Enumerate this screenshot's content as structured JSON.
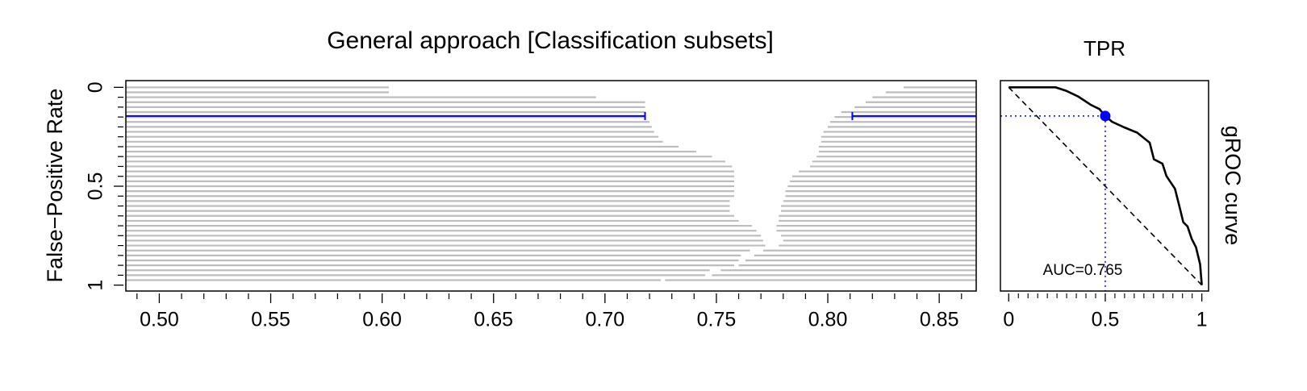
{
  "chart_data": [
    {
      "type": "interval-rows",
      "title": "General approach  [Classification subsets]",
      "y_label": "False−Positive Rate",
      "xlim": [
        0.485,
        0.8666
      ],
      "xticks": [
        {
          "value": 0.5,
          "label": "0.50"
        },
        {
          "value": 0.55,
          "label": "0.55"
        },
        {
          "value": 0.6,
          "label": "0.60"
        },
        {
          "value": 0.65,
          "label": "0.65"
        },
        {
          "value": 0.7,
          "label": "0.70"
        },
        {
          "value": 0.75,
          "label": "0.75"
        },
        {
          "value": 0.8,
          "label": "0.80"
        },
        {
          "value": 0.85,
          "label": "0.85"
        }
      ],
      "xminorticks": [
        0.49,
        0.51,
        0.52,
        0.53,
        0.54,
        0.56,
        0.57,
        0.58,
        0.59,
        0.61,
        0.62,
        0.63,
        0.64,
        0.66,
        0.67,
        0.68,
        0.69,
        0.71,
        0.72,
        0.73,
        0.74,
        0.76,
        0.77,
        0.78,
        0.79,
        0.81,
        0.82,
        0.83,
        0.84,
        0.86
      ],
      "ylim": [
        -0.034,
        1.03
      ],
      "yticks": [
        0,
        0.5,
        1
      ],
      "yminorticks": [
        0.05,
        0.1,
        0.15,
        0.2,
        0.25,
        0.3,
        0.35,
        0.4,
        0.45,
        0.55,
        0.6,
        0.65,
        0.7,
        0.75,
        0.8,
        0.85,
        0.9,
        0.95
      ],
      "color": "#bdbdbd",
      "rows": {
        "fpr": [
          0,
          0.025,
          0.05,
          0.075,
          0.1,
          0.125,
          0.15,
          0.175,
          0.2,
          0.225,
          0.25,
          0.275,
          0.3,
          0.325,
          0.35,
          0.375,
          0.4,
          0.425,
          0.45,
          0.475,
          0.5,
          0.525,
          0.55,
          0.575,
          0.6,
          0.625,
          0.65,
          0.675,
          0.7,
          0.725,
          0.75,
          0.775,
          0.8,
          0.825,
          0.85,
          0.875,
          0.9,
          0.925,
          0.95,
          0.975
        ],
        "gap_start": [
          0.603,
          0.603,
          0.696,
          0.718,
          0.718,
          0.718,
          0.718,
          0.72,
          0.721,
          0.722,
          0.724,
          0.726,
          0.733,
          0.741,
          0.748,
          0.754,
          0.757,
          0.758,
          0.758,
          0.758,
          0.758,
          0.758,
          0.758,
          0.756,
          0.756,
          0.756,
          0.758,
          0.76,
          0.766,
          0.768,
          0.77,
          0.771,
          0.772,
          0.765,
          0.761,
          0.76,
          0.758,
          0.747,
          0.745,
          0.725
        ],
        "gap_end": [
          0.834,
          0.826,
          0.82,
          0.817,
          0.812,
          0.806,
          0.803,
          0.801,
          0.8,
          0.798,
          0.797,
          0.797,
          0.796,
          0.796,
          0.795,
          0.793,
          0.792,
          0.787,
          0.784,
          0.783,
          0.782,
          0.781,
          0.781,
          0.78,
          0.779,
          0.779,
          0.778,
          0.778,
          0.777,
          0.777,
          0.779,
          0.78,
          0.778,
          0.771,
          0.767,
          0.763,
          0.76,
          0.752,
          0.748,
          0.727
        ]
      },
      "threshold": {
        "fpr": 0.145,
        "lower": 0.718,
        "upper": 0.811,
        "color": "#0000ff"
      }
    },
    {
      "type": "line",
      "title": "TPR",
      "side_label": "gROC curve",
      "annotation": "AUC=0.765",
      "xlim": [
        -0.043,
        1.035
      ],
      "xticks": [
        0,
        0.5,
        1
      ],
      "xminorticks": [
        0.05,
        0.1,
        0.15,
        0.2,
        0.25,
        0.3,
        0.35,
        0.4,
        0.45,
        0.55,
        0.6,
        0.65,
        0.7,
        0.75,
        0.8,
        0.85,
        0.9,
        0.95
      ],
      "ylim": [
        -0.034,
        1.03
      ],
      "color": "#000000",
      "x": [
        0,
        0.243,
        0.296,
        0.361,
        0.426,
        0.47,
        0.5,
        0.535,
        0.6,
        0.665,
        0.73,
        0.752,
        0.796,
        0.817,
        0.861,
        0.883,
        0.904,
        0.926,
        0.948,
        0.97,
        0.991,
        1
      ],
      "y": [
        0,
        0,
        0.017,
        0.047,
        0.089,
        0.11,
        0.145,
        0.174,
        0.203,
        0.229,
        0.28,
        0.364,
        0.386,
        0.449,
        0.513,
        0.598,
        0.682,
        0.703,
        0.767,
        0.809,
        0.894,
        1
      ],
      "reference_line": {
        "x": [
          0,
          1
        ],
        "y": [
          0,
          1
        ]
      },
      "point": {
        "x": 0.5,
        "y": 0.145,
        "color": "#0000ff"
      }
    }
  ]
}
